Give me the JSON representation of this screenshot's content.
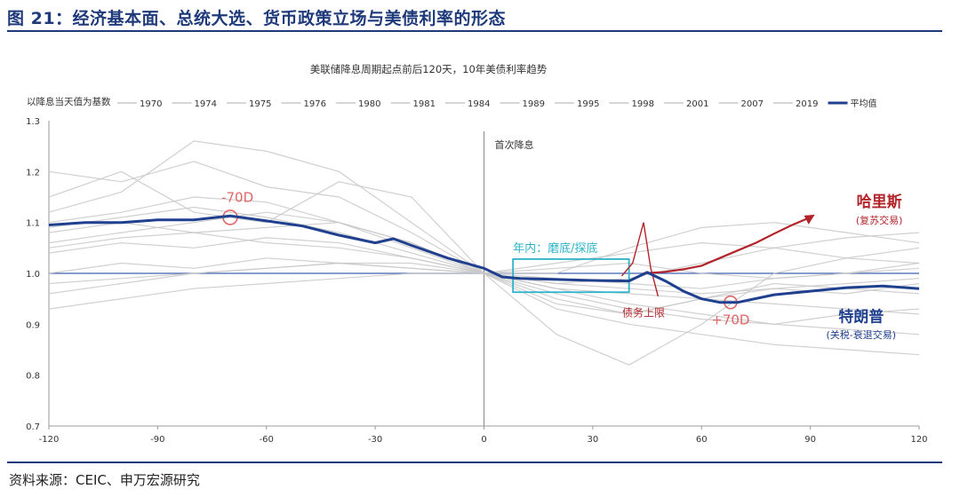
{
  "figure_title": "图 21：经济基本面、总统大选、货币政策立场与美债利率的形态",
  "source": "资料来源：CEIC、申万宏源研究",
  "chart_data": {
    "type": "line",
    "title": "美联储降息周期起点前后120天，10年美债利率趋势",
    "ylabel": "以降息当天值为基数",
    "xlim": [
      -120,
      120
    ],
    "ylim": [
      0.7,
      1.3
    ],
    "x_ticks": [
      -120,
      -90,
      -60,
      -30,
      0,
      30,
      60,
      90,
      120
    ],
    "y_ticks": [
      0.7,
      0.8,
      0.9,
      1.0,
      1.1,
      1.2,
      1.3
    ],
    "legend_position": "top",
    "legend": [
      "1970",
      "1974",
      "1975",
      "1976",
      "1980",
      "1981",
      "1984",
      "1989",
      "1995",
      "1998",
      "2001",
      "2007",
      "2019",
      "平均值"
    ],
    "average_series": {
      "name": "平均值",
      "color": "#1f3f8f",
      "x": [
        -120,
        -110,
        -100,
        -90,
        -80,
        -70,
        -60,
        -50,
        -40,
        -30,
        -25,
        -20,
        -10,
        0,
        5,
        10,
        20,
        30,
        40,
        45,
        50,
        55,
        60,
        65,
        70,
        80,
        90,
        100,
        110,
        120
      ],
      "y": [
        1.095,
        1.1,
        1.1,
        1.105,
        1.105,
        1.113,
        1.103,
        1.093,
        1.075,
        1.06,
        1.068,
        1.055,
        1.03,
        1.01,
        0.993,
        0.99,
        0.988,
        0.986,
        0.985,
        1.002,
        0.985,
        0.965,
        0.95,
        0.943,
        0.943,
        0.958,
        0.965,
        0.972,
        0.975,
        0.97
      ]
    },
    "background_series": [
      {
        "name": "1970",
        "x": [
          -120,
          -100,
          -80,
          -60,
          -40,
          -20,
          0,
          20,
          40,
          60,
          80,
          100,
          120
        ],
        "y": [
          1.2,
          1.18,
          1.22,
          1.17,
          1.15,
          1.08,
          1.0,
          0.93,
          0.9,
          0.88,
          0.86,
          0.85,
          0.84
        ]
      },
      {
        "name": "1974",
        "x": [
          -120,
          -100,
          -80,
          -60,
          -40,
          -20,
          0,
          20,
          40,
          60,
          80,
          100,
          120
        ],
        "y": [
          1.12,
          1.16,
          1.26,
          1.24,
          1.2,
          1.1,
          1.0,
          0.94,
          0.92,
          0.95,
          0.97,
          0.96,
          0.98
        ]
      },
      {
        "name": "1975",
        "x": [
          -120,
          -100,
          -80,
          -60,
          -40,
          -20,
          0,
          20,
          40,
          60,
          80,
          100,
          120
        ],
        "y": [
          1.06,
          1.08,
          1.1,
          1.12,
          1.1,
          1.06,
          1.0,
          0.98,
          0.99,
          1.02,
          1.05,
          1.07,
          1.08
        ]
      },
      {
        "name": "1976",
        "x": [
          -120,
          -100,
          -80,
          -60,
          -40,
          -20,
          0,
          20,
          40,
          60,
          80,
          100,
          120
        ],
        "y": [
          0.98,
          0.99,
          1.0,
          1.01,
          1.02,
          1.01,
          1.0,
          0.97,
          0.96,
          0.95,
          0.94,
          0.93,
          0.92
        ]
      },
      {
        "name": "1980",
        "x": [
          -120,
          -100,
          -80,
          -60,
          -40,
          -20,
          0,
          20,
          40,
          60,
          80,
          100,
          120
        ],
        "y": [
          1.15,
          1.2,
          1.12,
          1.1,
          1.18,
          1.15,
          1.0,
          0.88,
          0.82,
          0.9,
          1.0,
          1.03,
          1.05
        ]
      },
      {
        "name": "1981",
        "x": [
          -120,
          -100,
          -80,
          -60,
          -40,
          -20,
          0,
          20,
          40,
          60,
          80,
          100,
          120
        ],
        "y": [
          1.04,
          1.06,
          1.05,
          1.07,
          1.06,
          1.03,
          1.0,
          1.01,
          1.02,
          1.0,
          0.99,
          1.0,
          1.01
        ]
      },
      {
        "name": "1984",
        "x": [
          -120,
          -100,
          -80,
          -60,
          -40,
          -20,
          0,
          20,
          40,
          60,
          80,
          100,
          120
        ],
        "y": [
          0.93,
          0.95,
          0.97,
          0.98,
          0.99,
          1.0,
          1.0,
          0.97,
          0.94,
          0.92,
          0.9,
          0.89,
          0.88
        ]
      },
      {
        "name": "1989",
        "x": [
          -120,
          -100,
          -80,
          -60,
          -40,
          -20,
          0,
          20,
          40,
          60,
          80,
          100,
          120
        ],
        "y": [
          1.08,
          1.1,
          1.08,
          1.06,
          1.05,
          1.03,
          1.0,
          0.99,
          0.98,
          0.97,
          0.99,
          1.0,
          1.02
        ]
      },
      {
        "name": "1995",
        "x": [
          -120,
          -100,
          -80,
          -60,
          -40,
          -20,
          0,
          20,
          40,
          60,
          80,
          100,
          120
        ],
        "y": [
          1.1,
          1.12,
          1.15,
          1.14,
          1.1,
          1.05,
          1.0,
          0.98,
          0.97,
          0.96,
          0.97,
          0.98,
          0.99
        ]
      },
      {
        "name": "1998",
        "x": [
          -120,
          -100,
          -80,
          -60,
          -40,
          -20,
          0,
          20,
          40,
          60,
          80,
          100,
          120
        ],
        "y": [
          1.05,
          1.07,
          1.08,
          1.09,
          1.1,
          1.06,
          1.0,
          1.0,
          1.05,
          1.09,
          1.1,
          1.08,
          1.06
        ]
      },
      {
        "name": "2001",
        "x": [
          -120,
          -100,
          -80,
          -60,
          -40,
          -20,
          0,
          20,
          40,
          60,
          80,
          100,
          120
        ],
        "y": [
          1.0,
          1.02,
          1.01,
          1.03,
          1.02,
          1.01,
          1.0,
          1.02,
          1.04,
          1.06,
          1.05,
          1.03,
          1.02
        ]
      },
      {
        "name": "2007",
        "x": [
          -120,
          -100,
          -80,
          -60,
          -40,
          -20,
          0,
          20,
          40,
          60,
          80,
          100,
          120
        ],
        "y": [
          0.96,
          0.98,
          1.0,
          1.01,
          1.02,
          1.02,
          1.0,
          0.96,
          0.93,
          0.91,
          0.9,
          0.92,
          0.93
        ]
      },
      {
        "name": "2019",
        "x": [
          -120,
          -100,
          -80,
          -60,
          -40,
          -20,
          0,
          20,
          40,
          60,
          80,
          100,
          120
        ],
        "y": [
          1.09,
          1.11,
          1.13,
          1.11,
          1.08,
          1.04,
          1.0,
          0.95,
          0.92,
          0.95,
          0.98,
          0.97,
          0.96
        ]
      }
    ],
    "annotations": {
      "start_label": "首次降息",
      "box_label": "年内：磨底/探底",
      "harris": "哈里斯",
      "harris_sub": "(复苏交易)",
      "trump": "特朗普",
      "trump_sub": "(关税-衰退交易)",
      "debt_ceiling": "债务上限",
      "minus70": "-70D",
      "plus70": "+70D",
      "harris_path": {
        "x": [
          44,
          50,
          55,
          60,
          65,
          70,
          75,
          80,
          85,
          90
        ],
        "y": [
          1.0,
          1.003,
          1.008,
          1.015,
          1.03,
          1.045,
          1.06,
          1.078,
          1.095,
          1.11
        ]
      },
      "spike": {
        "x": [
          38,
          41,
          44,
          46,
          48
        ],
        "y": [
          0.995,
          1.02,
          1.1,
          1.01,
          0.955
        ]
      },
      "box": {
        "x0": 8,
        "x1": 40,
        "y0": 0.963,
        "y1": 1.028
      }
    },
    "colors": {
      "average": "#1f3f8f",
      "background": "#c8c8c8",
      "harris": "#b3242a",
      "box": "#2eb3c9",
      "baseline": "#3d5fb0"
    }
  }
}
